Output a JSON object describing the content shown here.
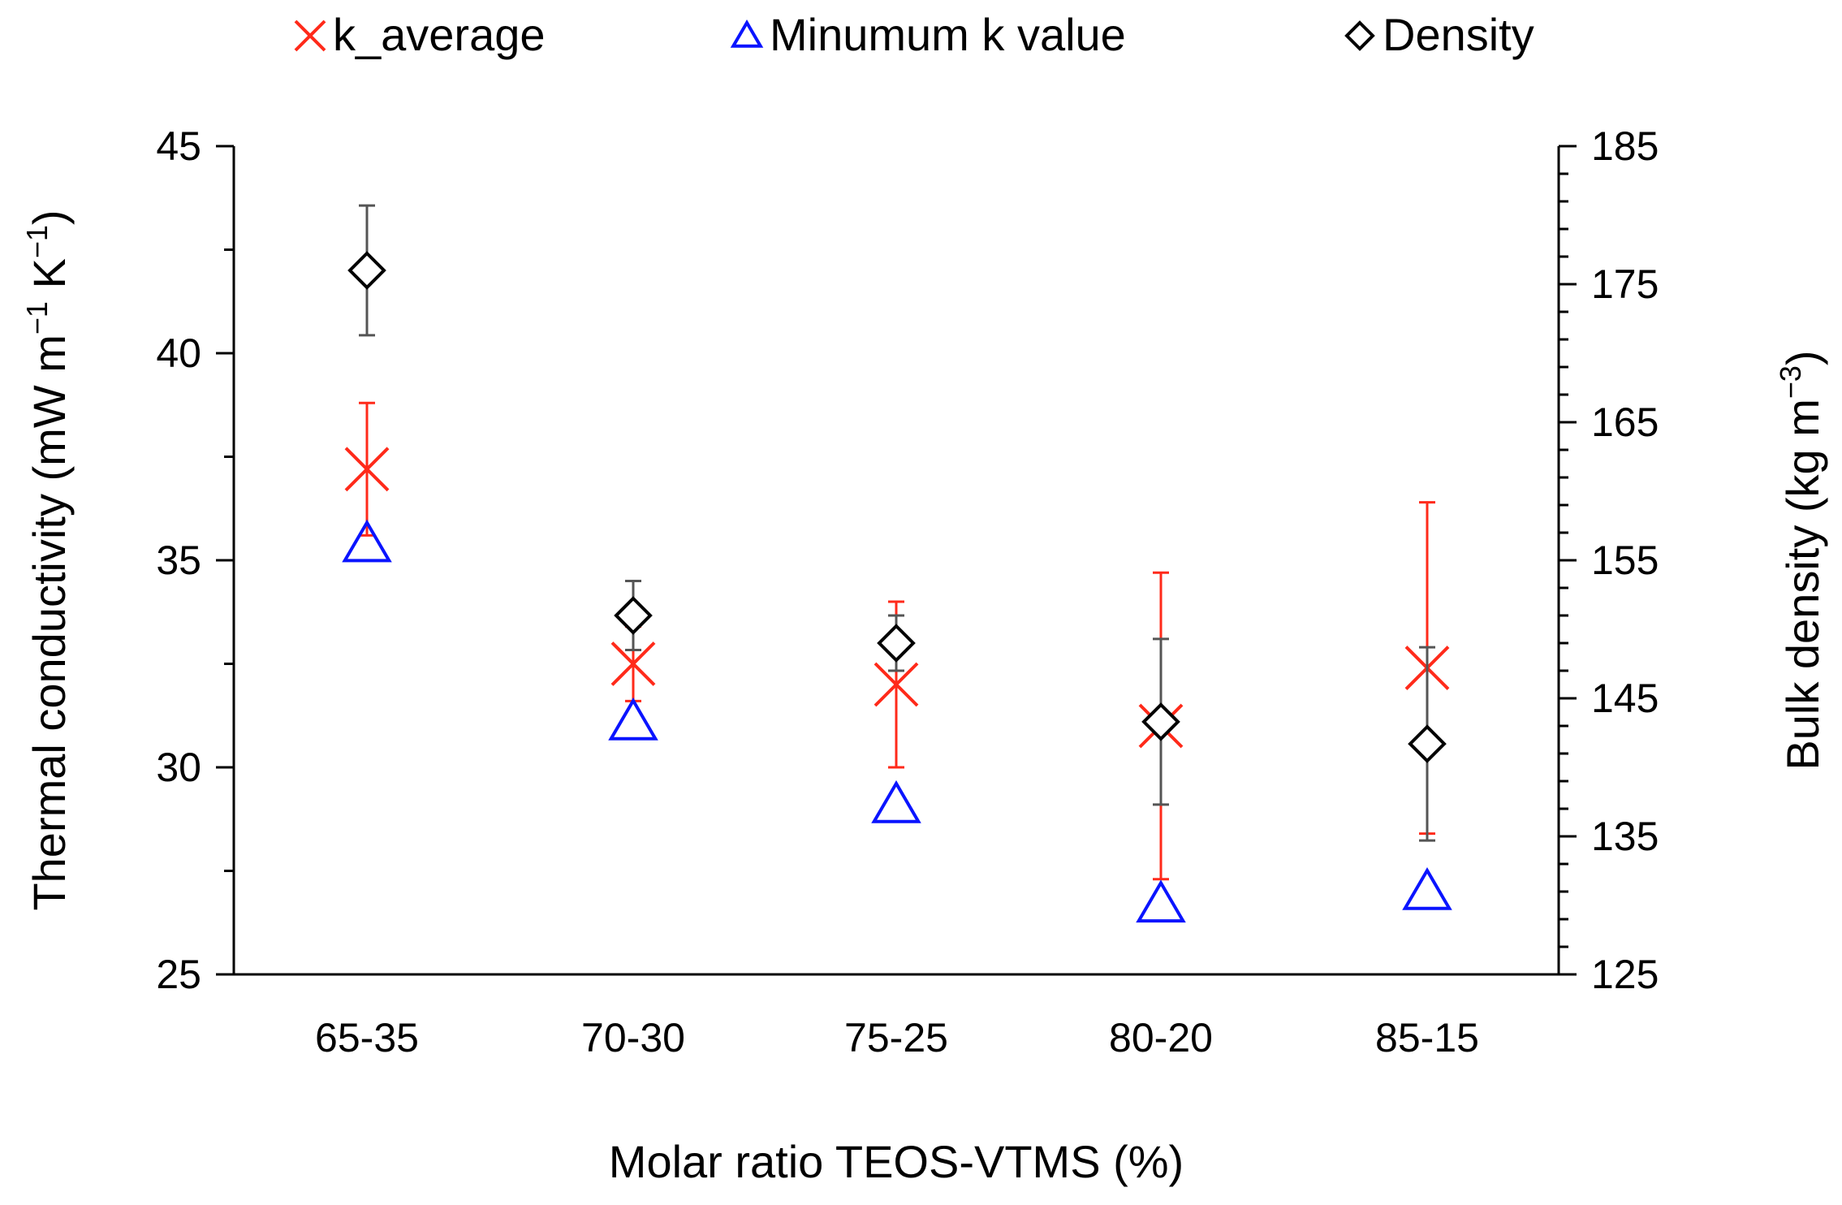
{
  "chart_data": {
    "type": "scatter",
    "categories": [
      "65-35",
      "70-30",
      "75-25",
      "80-20",
      "85-15"
    ],
    "xlabel": "Molar ratio TEOS-VTMS (%)",
    "ylabel": {
      "main": "Thermal conductivity (mW m",
      "sup1": "−1",
      "mid": " K",
      "sup2": "−1",
      "end": ")"
    },
    "ylabel_right": {
      "main": "Bulk density (kg m",
      "sup": "−3",
      "end": ")"
    },
    "ylim": [
      25,
      45
    ],
    "yticks": [
      "25",
      "30",
      "35",
      "40",
      "45"
    ],
    "ylim_right": [
      125,
      185
    ],
    "yticks_right": [
      "125",
      "135",
      "145",
      "155",
      "165",
      "175",
      "185"
    ],
    "series": [
      {
        "name": "k_average",
        "axis": "left",
        "marker": "x",
        "color": "#ff2a1a",
        "values": [
          37.2,
          32.5,
          32.0,
          31.0,
          32.4
        ],
        "errors": [
          1.6,
          0.9,
          2.0,
          3.7,
          4.0
        ]
      },
      {
        "name": "Minumum k  value",
        "axis": "left",
        "marker": "triangle",
        "color": "#0a14ff",
        "values": [
          35.4,
          31.1,
          29.1,
          26.7,
          27.0
        ],
        "errors": null
      },
      {
        "name": "Density",
        "axis": "right",
        "marker": "diamond",
        "color": "#000000",
        "values": [
          176.0,
          151.0,
          149.0,
          143.3,
          141.7
        ],
        "errors": [
          4.7,
          2.5,
          2.0,
          6.0,
          7.0
        ]
      }
    ],
    "legend": {
      "position": "top"
    }
  }
}
